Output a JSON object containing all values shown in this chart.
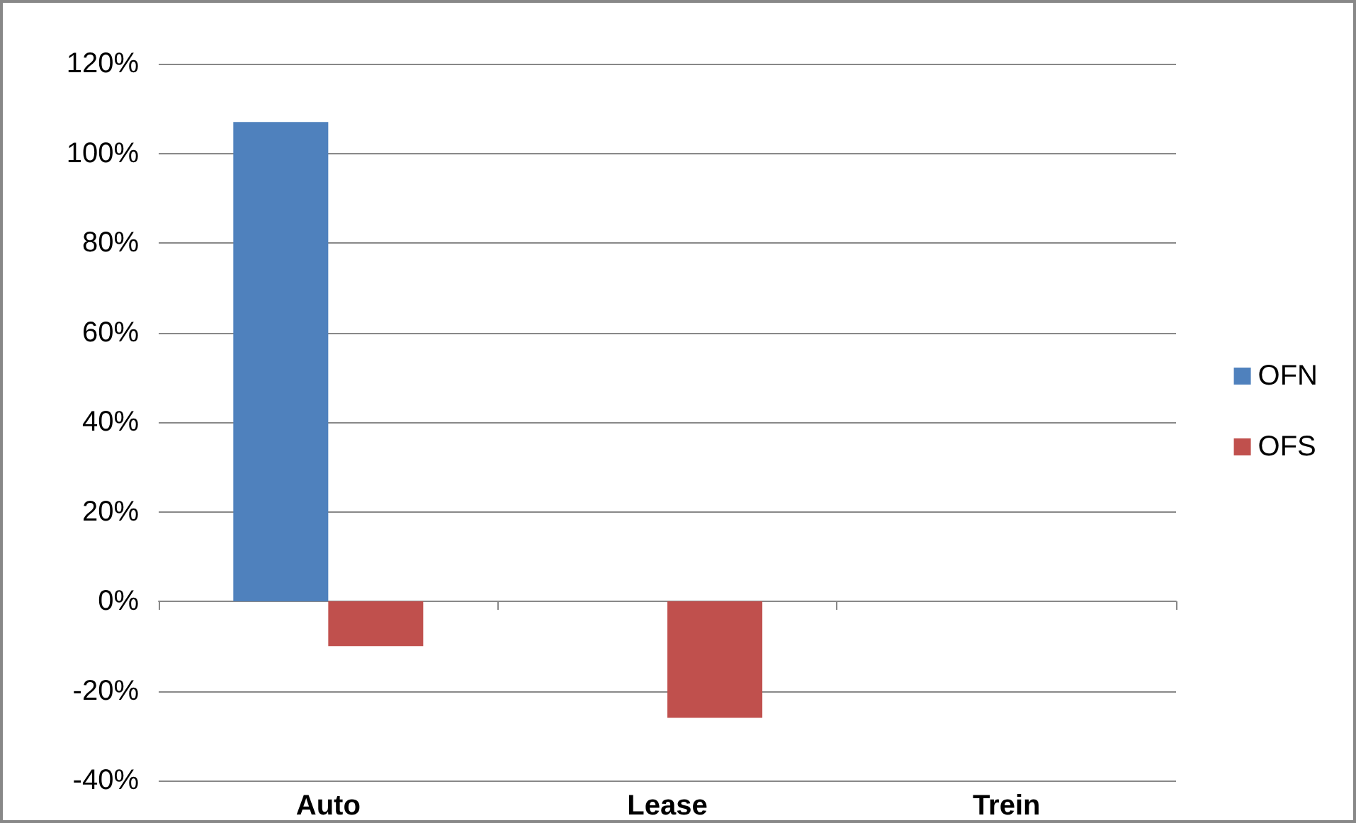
{
  "chart_data": {
    "type": "bar",
    "categories": [
      "Auto",
      "Lease",
      "Trein"
    ],
    "series": [
      {
        "name": "OFN",
        "color": "#4f81bd",
        "values": [
          107,
          null,
          null
        ]
      },
      {
        "name": "OFS",
        "color": "#c0504d",
        "values": [
          -10,
          -26,
          null
        ]
      }
    ],
    "ylim": [
      -40,
      120
    ],
    "yticks": [
      {
        "value": -40,
        "label": "-40%"
      },
      {
        "value": -20,
        "label": "-20%"
      },
      {
        "value": 0,
        "label": "0%"
      },
      {
        "value": 20,
        "label": "20%"
      },
      {
        "value": 40,
        "label": "40%"
      },
      {
        "value": 60,
        "label": "60%"
      },
      {
        "value": 80,
        "label": "80%"
      },
      {
        "value": 100,
        "label": "100%"
      },
      {
        "value": 120,
        "label": "120%"
      }
    ],
    "grid": "y",
    "legend": "right"
  }
}
